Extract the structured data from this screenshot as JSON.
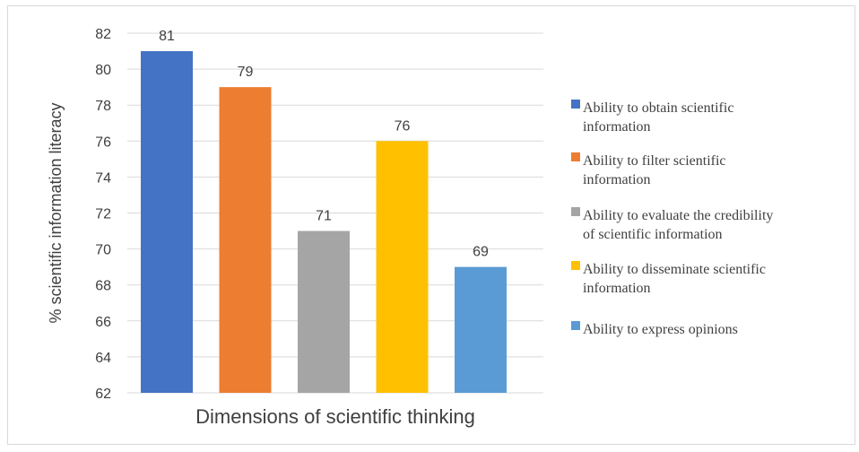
{
  "chart_data": {
    "type": "bar",
    "title": "",
    "xlabel": "Dimensions of scientific thinking",
    "ylabel": "% scientific information literacy",
    "ylim": [
      62,
      82
    ],
    "yticks": [
      62,
      64,
      66,
      68,
      70,
      72,
      74,
      76,
      78,
      80,
      82
    ],
    "grid": true,
    "legend_position": "right",
    "series": [
      {
        "name": "Ability to obtain scientific information",
        "legend_lines": [
          "Ability to obtain scientific",
          "information"
        ],
        "value": 81,
        "color": "#4472C4"
      },
      {
        "name": "Ability to filter scientific information",
        "legend_lines": [
          "Ability to filter scientific",
          "information"
        ],
        "value": 79,
        "color": "#ED7D31"
      },
      {
        "name": "Ability to evaluate the credibility of scientific information",
        "legend_lines": [
          "Ability to evaluate the credibility",
          "of scientific information"
        ],
        "value": 71,
        "color": "#A5A5A5"
      },
      {
        "name": "Ability to disseminate scientific information",
        "legend_lines": [
          "Ability to disseminate scientific",
          "information"
        ],
        "value": 76,
        "color": "#FFC000"
      },
      {
        "name": "Ability to express opinions",
        "legend_lines": [
          "Ability to express opinions"
        ],
        "value": 69,
        "color": "#5B9BD5"
      }
    ]
  }
}
